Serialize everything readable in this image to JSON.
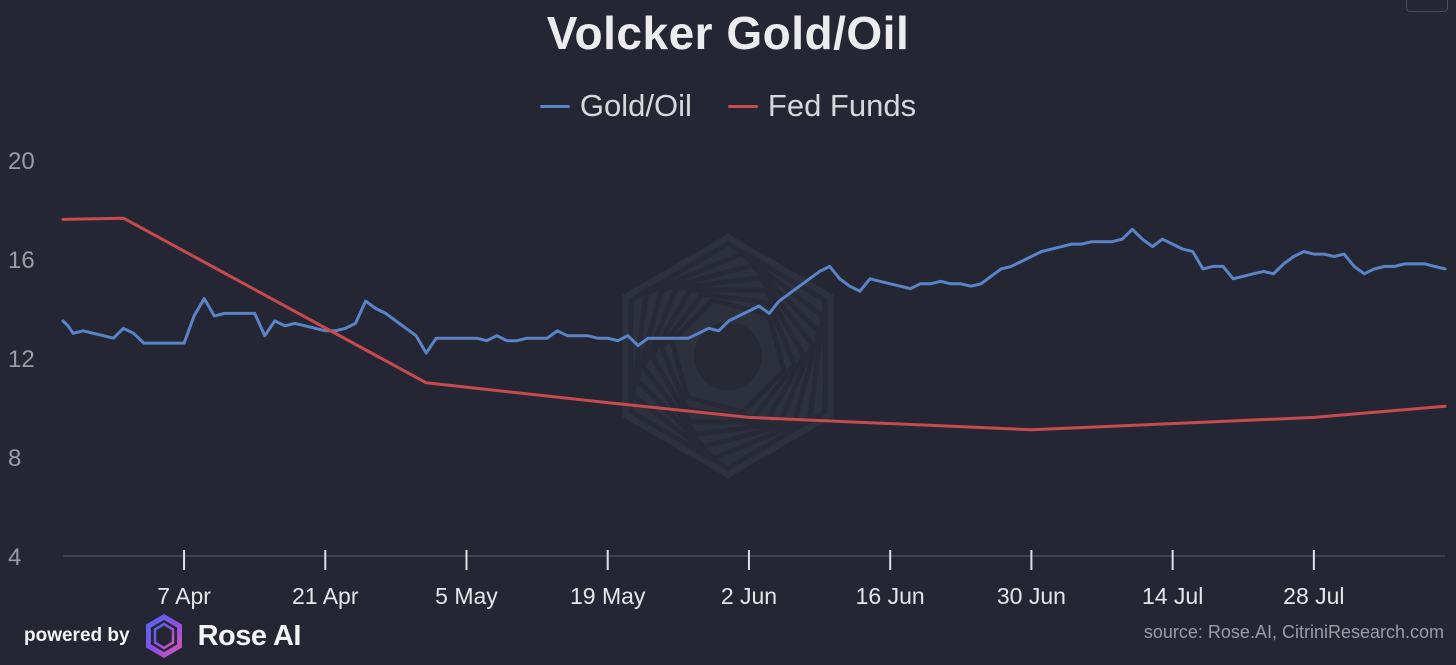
{
  "chart_data": {
    "type": "line",
    "title": "Volcker Gold/Oil",
    "legend_position": "top-center",
    "x_tick_labels": [
      "7 Apr",
      "21 Apr",
      "5 May",
      "19 May",
      "2 Jun",
      "16 Jun",
      "30 Jun",
      "14 Jul",
      "28 Jul"
    ],
    "x_tick_days": [
      14,
      28,
      42,
      56,
      70,
      84,
      98,
      112,
      126
    ],
    "x_range_days": [
      2,
      139
    ],
    "y_ticks": [
      4,
      8,
      12,
      16,
      20
    ],
    "ylim": [
      4,
      20
    ],
    "grid": false,
    "series": [
      {
        "name": "Gold/Oil",
        "color": "#5b84c8",
        "x": [
          2,
          2.5,
          3,
          4,
          5,
          6,
          7,
          8,
          9,
          10,
          11,
          12,
          13,
          14,
          15,
          16,
          17,
          18,
          19,
          20,
          21,
          22,
          23,
          24,
          25,
          26,
          27,
          28,
          29,
          30,
          31,
          32,
          33,
          34,
          35,
          36,
          37,
          38,
          39,
          40,
          41,
          42,
          43,
          44,
          45,
          46,
          47,
          48,
          49,
          50,
          51,
          52,
          53,
          54,
          55,
          56,
          57,
          58,
          59,
          60,
          61,
          62,
          63,
          64,
          65,
          66,
          67,
          68,
          69,
          70,
          71,
          72,
          73,
          74,
          75,
          76,
          77,
          78,
          79,
          80,
          81,
          82,
          83,
          84,
          85,
          86,
          87,
          88,
          89,
          90,
          91,
          92,
          93,
          94,
          95,
          96,
          97,
          98,
          99,
          100,
          101,
          102,
          103,
          104,
          105,
          106,
          107,
          108,
          109,
          110,
          111,
          112,
          113,
          114,
          115,
          116,
          117,
          118,
          119,
          120,
          121,
          122,
          123,
          124,
          125,
          126,
          127,
          128,
          129,
          130,
          131,
          132,
          133,
          134,
          135,
          136,
          137,
          138,
          139
        ],
        "values": [
          13.5,
          13.3,
          13.0,
          13.1,
          13.0,
          12.9,
          12.8,
          13.2,
          13.0,
          12.6,
          12.6,
          12.6,
          12.6,
          12.6,
          13.7,
          14.4,
          13.7,
          13.8,
          13.8,
          13.8,
          13.8,
          12.9,
          13.5,
          13.3,
          13.4,
          13.3,
          13.2,
          13.1,
          13.1,
          13.2,
          13.4,
          14.3,
          14.0,
          13.8,
          13.5,
          13.2,
          12.9,
          12.2,
          12.8,
          12.8,
          12.8,
          12.8,
          12.8,
          12.7,
          12.9,
          12.7,
          12.7,
          12.8,
          12.8,
          12.8,
          13.1,
          12.9,
          12.9,
          12.9,
          12.8,
          12.8,
          12.7,
          12.9,
          12.5,
          12.8,
          12.8,
          12.8,
          12.8,
          12.8,
          13.0,
          13.2,
          13.1,
          13.5,
          13.7,
          13.9,
          14.1,
          13.8,
          14.3,
          14.6,
          14.9,
          15.2,
          15.5,
          15.7,
          15.2,
          14.9,
          14.7,
          15.2,
          15.1,
          15.0,
          14.9,
          14.8,
          15.0,
          15.0,
          15.1,
          15.0,
          15.0,
          14.9,
          15.0,
          15.3,
          15.6,
          15.7,
          15.9,
          16.1,
          16.3,
          16.4,
          16.5,
          16.6,
          16.6,
          16.7,
          16.7,
          16.7,
          16.8,
          17.2,
          16.8,
          16.5,
          16.8,
          16.6,
          16.4,
          16.3,
          15.6,
          15.7,
          15.7,
          15.2,
          15.3,
          15.4,
          15.5,
          15.4,
          15.8,
          16.1,
          16.3,
          16.2,
          16.2,
          16.1,
          16.2,
          15.7,
          15.4,
          15.6,
          15.7,
          15.7,
          15.8,
          15.8,
          15.8,
          15.7,
          15.6
        ]
      },
      {
        "name": "Fed Funds",
        "color": "#c94a4d",
        "x": [
          2,
          8,
          38,
          56,
          70,
          98,
          126,
          139
        ],
        "values": [
          17.6,
          17.65,
          11.0,
          10.2,
          9.6,
          9.1,
          9.6,
          10.05
        ]
      }
    ]
  },
  "footer": {
    "powered_by": "powered by",
    "brand": "Rose AI",
    "source": "source: Rose.AI, CitriniResearch.com"
  },
  "watermark": "rose-logo-watermark"
}
